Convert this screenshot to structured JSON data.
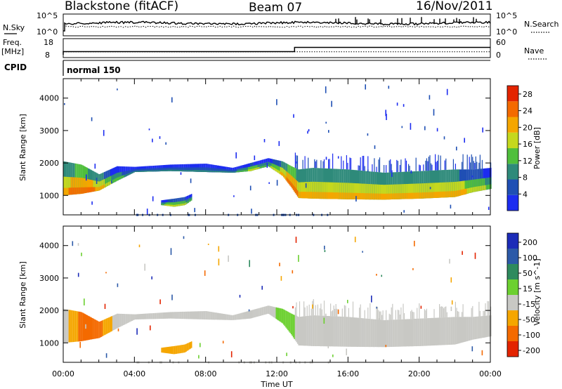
{
  "header": {
    "station": "Blackstone (fitACF)",
    "beam": "Beam 07",
    "date": "16/Nov/2011"
  },
  "status_panel": {
    "nsky_label": "N.Sky",
    "nsky_ticks": [
      "10^5",
      "10^0"
    ],
    "nsearch_label": "N.Search",
    "nsearch_ticks": [
      "10^5",
      "10^0"
    ],
    "freq_label_line1": "Freq.",
    "freq_label_line2": "[MHz]",
    "freq_ticks": [
      "18",
      "8"
    ],
    "freq_value_mhz": 10.5,
    "nave_label": "Nave",
    "nave_ticks": [
      "60",
      "0"
    ],
    "nave_steps": [
      {
        "from_hour": 0,
        "to_hour": 13,
        "nave": 16
      },
      {
        "from_hour": 13,
        "to_hour": 24,
        "nave": 37
      }
    ],
    "cpid_label": "CPID",
    "cpid_value": "normal 150"
  },
  "chart_data": [
    {
      "type": "heatmap",
      "name": "Power",
      "xlabel": "Time UT",
      "ylabel": "Slant Range [km]",
      "x_ticks": [
        "00:00",
        "04:00",
        "08:00",
        "12:00",
        "16:00",
        "20:00",
        "00:00"
      ],
      "xlim_hours": [
        0,
        24
      ],
      "ylim": [
        400,
        4600
      ],
      "y_ticks": [
        1000,
        2000,
        3000,
        4000
      ],
      "colorbar": {
        "label": "Power [dB]",
        "ticks": [
          4,
          8,
          12,
          16,
          20,
          24,
          28
        ],
        "range": [
          0,
          30
        ],
        "colors": [
          "#1c2cf0",
          "#1f4fb4",
          "#2e8a7a",
          "#4fbf3c",
          "#c5d81e",
          "#f5a600",
          "#f46a00",
          "#e32400"
        ]
      },
      "bands": [
        {
          "time_hours": [
            0.0,
            1.0,
            2.0,
            3.0,
            4.0,
            6.0,
            8.0,
            9.5,
            10.5,
            11.5,
            12.3,
            12.8,
            13.2,
            14.0,
            16.0,
            18.0,
            20.0,
            22.0,
            23.0,
            24.0
          ],
          "lower_km": [
            1000,
            1050,
            1150,
            1450,
            1720,
            1750,
            1720,
            1700,
            1750,
            1900,
            1600,
            1250,
            920,
            900,
            880,
            870,
            900,
            950,
            1100,
            1200
          ],
          "upper_km": [
            2050,
            1950,
            1650,
            1900,
            1880,
            1950,
            1980,
            1850,
            2000,
            2150,
            2050,
            1900,
            1800,
            1850,
            1800,
            1700,
            1750,
            1800,
            1800,
            1850
          ],
          "power_db": [
            22,
            24,
            22,
            12,
            10,
            10,
            9,
            10,
            16,
            14,
            20,
            26,
            22,
            22,
            20,
            20,
            22,
            20,
            18,
            14
          ]
        },
        {
          "time_hours": [
            5.5,
            6.2,
            6.8,
            7.2
          ],
          "lower_km": [
            700,
            650,
            700,
            850
          ],
          "upper_km": [
            850,
            900,
            950,
            1050
          ],
          "power_db": [
            14,
            18,
            16,
            12
          ]
        }
      ]
    },
    {
      "type": "heatmap",
      "name": "Velocity",
      "xlabel": "Time UT",
      "ylabel": "Slant Range [km]",
      "x_ticks": [
        "00:00",
        "04:00",
        "08:00",
        "12:00",
        "16:00",
        "20:00",
        "00:00"
      ],
      "xlim_hours": [
        0,
        24
      ],
      "ylim": [
        400,
        4600
      ],
      "y_ticks": [
        1000,
        2000,
        3000,
        4000
      ],
      "colorbar": {
        "label": "Velocity [m s^-1]",
        "ticks": [
          200,
          100,
          50,
          15,
          -15,
          -50,
          -100,
          -200
        ],
        "colors": [
          "#1c2cb8",
          "#2c5aa8",
          "#2e8a5e",
          "#6cd030",
          "#c8c8c4",
          "#f5a600",
          "#f46a00",
          "#e32400"
        ]
      },
      "bands": [
        {
          "time_hours": [
            0.0,
            1.0,
            2.0,
            3.0,
            4.0,
            6.0,
            8.0,
            9.5,
            10.5,
            11.5,
            12.3,
            12.8,
            13.2,
            14.0,
            16.0,
            18.0,
            20.0,
            22.0,
            23.0,
            24.0
          ],
          "lower_km": [
            1000,
            1050,
            1150,
            1450,
            1720,
            1750,
            1720,
            1700,
            1750,
            1900,
            1600,
            1250,
            920,
            900,
            880,
            870,
            900,
            950,
            1100,
            1200
          ],
          "upper_km": [
            2050,
            1950,
            1650,
            1900,
            1880,
            1950,
            1980,
            1850,
            2000,
            2150,
            2050,
            1900,
            1800,
            1850,
            1800,
            1700,
            1750,
            1800,
            1800,
            1850
          ],
          "velocity_ms": [
            0,
            -60,
            -60,
            0,
            0,
            0,
            0,
            0,
            0,
            0,
            30,
            30,
            0,
            0,
            0,
            0,
            0,
            0,
            0,
            0
          ]
        },
        {
          "time_hours": [
            5.5,
            6.2,
            6.8,
            7.2
          ],
          "lower_km": [
            700,
            650,
            700,
            850
          ],
          "upper_km": [
            850,
            900,
            950,
            1050
          ],
          "velocity_ms": [
            -40,
            -40,
            -40,
            -40
          ]
        }
      ]
    }
  ]
}
